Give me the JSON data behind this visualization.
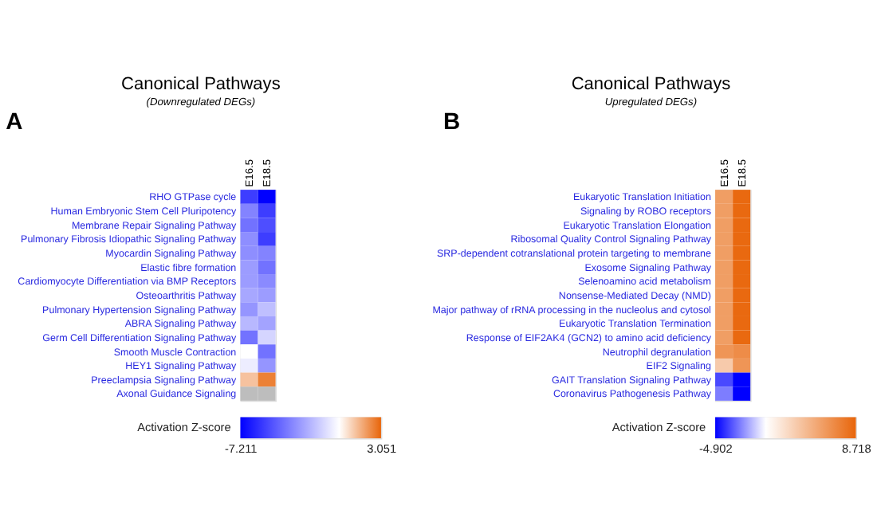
{
  "chart_data": [
    {
      "type": "heatmap",
      "title": "Canonical Pathways",
      "subtitle": "(Downregulated DEGs)",
      "annotations": [
        "A"
      ],
      "clabel": "Activation Z-score",
      "clim": [
        -7.211,
        3.051
      ],
      "cticks": [
        -7.211,
        3.051
      ],
      "categories": [
        "E16.5",
        "E18.5"
      ],
      "y_categories": [
        "RHO GTPase cycle",
        "Human Embryonic Stem Cell Pluripotency",
        "Membrane Repair Signaling Pathway",
        "Pulmonary Fibrosis Idiopathic Signaling Pathway",
        "Myocardin Signaling Pathway",
        "Elastic fibre formation",
        "Cardiomyocyte Differentiation via BMP Receptors",
        "Osteoarthritis Pathway",
        "Pulmonary Hypertension Signaling Pathway",
        "ABRA Signaling Pathway",
        "Germ Cell Differentiation Signaling Pathway",
        "Smooth Muscle Contraction",
        "HEY1 Signaling Pathway",
        "Preeclampsia Signaling Pathway",
        "Axonal Guidance Signaling"
      ],
      "cells": [
        [
          -5.5,
          -7.211
        ],
        [
          -3.5,
          -5.5
        ],
        [
          -4,
          -5
        ],
        [
          -3.2,
          -5.5
        ],
        [
          -3.2,
          -3.5
        ],
        [
          -2.8,
          -4
        ],
        [
          -2.8,
          -3.3
        ],
        [
          -2.5,
          -2.8
        ],
        [
          -3,
          -1.8
        ],
        [
          -2,
          -2.6
        ],
        [
          -4,
          -1.2
        ],
        [
          0,
          -4
        ],
        [
          -0.5,
          -3
        ],
        [
          1.2,
          2.5
        ],
        [
          null,
          null
        ]
      ]
    },
    {
      "type": "heatmap",
      "title": "Canonical Pathways",
      "subtitle": "Upregulated DEGs)",
      "annotations": [
        "B"
      ],
      "clabel": "Activation Z-score",
      "clim": [
        -4.902,
        8.718
      ],
      "cticks": [
        -4.902,
        8.718
      ],
      "categories": [
        "E16.5",
        "E18.5"
      ],
      "y_categories": [
        "Eukaryotic Translation Initiation",
        "Signaling by ROBO receptors",
        "Eukaryotic Translation Elongation",
        "Ribosomal Quality Control Signaling Pathway",
        "SRP-dependent cotranslational protein targeting to membrane",
        "Exosome Signaling Pathway",
        "Selenoamino acid metabolism",
        "Nonsense-Mediated Decay (NMD)",
        "Major pathway of rRNA processing in the nucleolus and cytosol",
        "Eukaryotic Translation Termination",
        "Response of EIF2AK4 (GCN2) to amino acid deficiency",
        "Neutrophil degranulation",
        "EIF2 Signaling",
        "GAIT Translation Signaling Pathway",
        "Coronavirus Pathogenesis Pathway"
      ],
      "cells": [
        [
          5.5,
          8.5
        ],
        [
          5.5,
          8.5
        ],
        [
          5.5,
          8.5
        ],
        [
          5.5,
          8.5
        ],
        [
          5.5,
          8.5
        ],
        [
          5.5,
          8.5
        ],
        [
          5.5,
          8.5
        ],
        [
          5.5,
          8.5
        ],
        [
          5.5,
          8.5
        ],
        [
          5.5,
          8.5
        ],
        [
          5.5,
          8.5
        ],
        [
          6,
          6.5
        ],
        [
          3,
          6
        ],
        [
          -3.5,
          -4.902
        ],
        [
          -2.5,
          -4.902
        ]
      ]
    }
  ]
}
